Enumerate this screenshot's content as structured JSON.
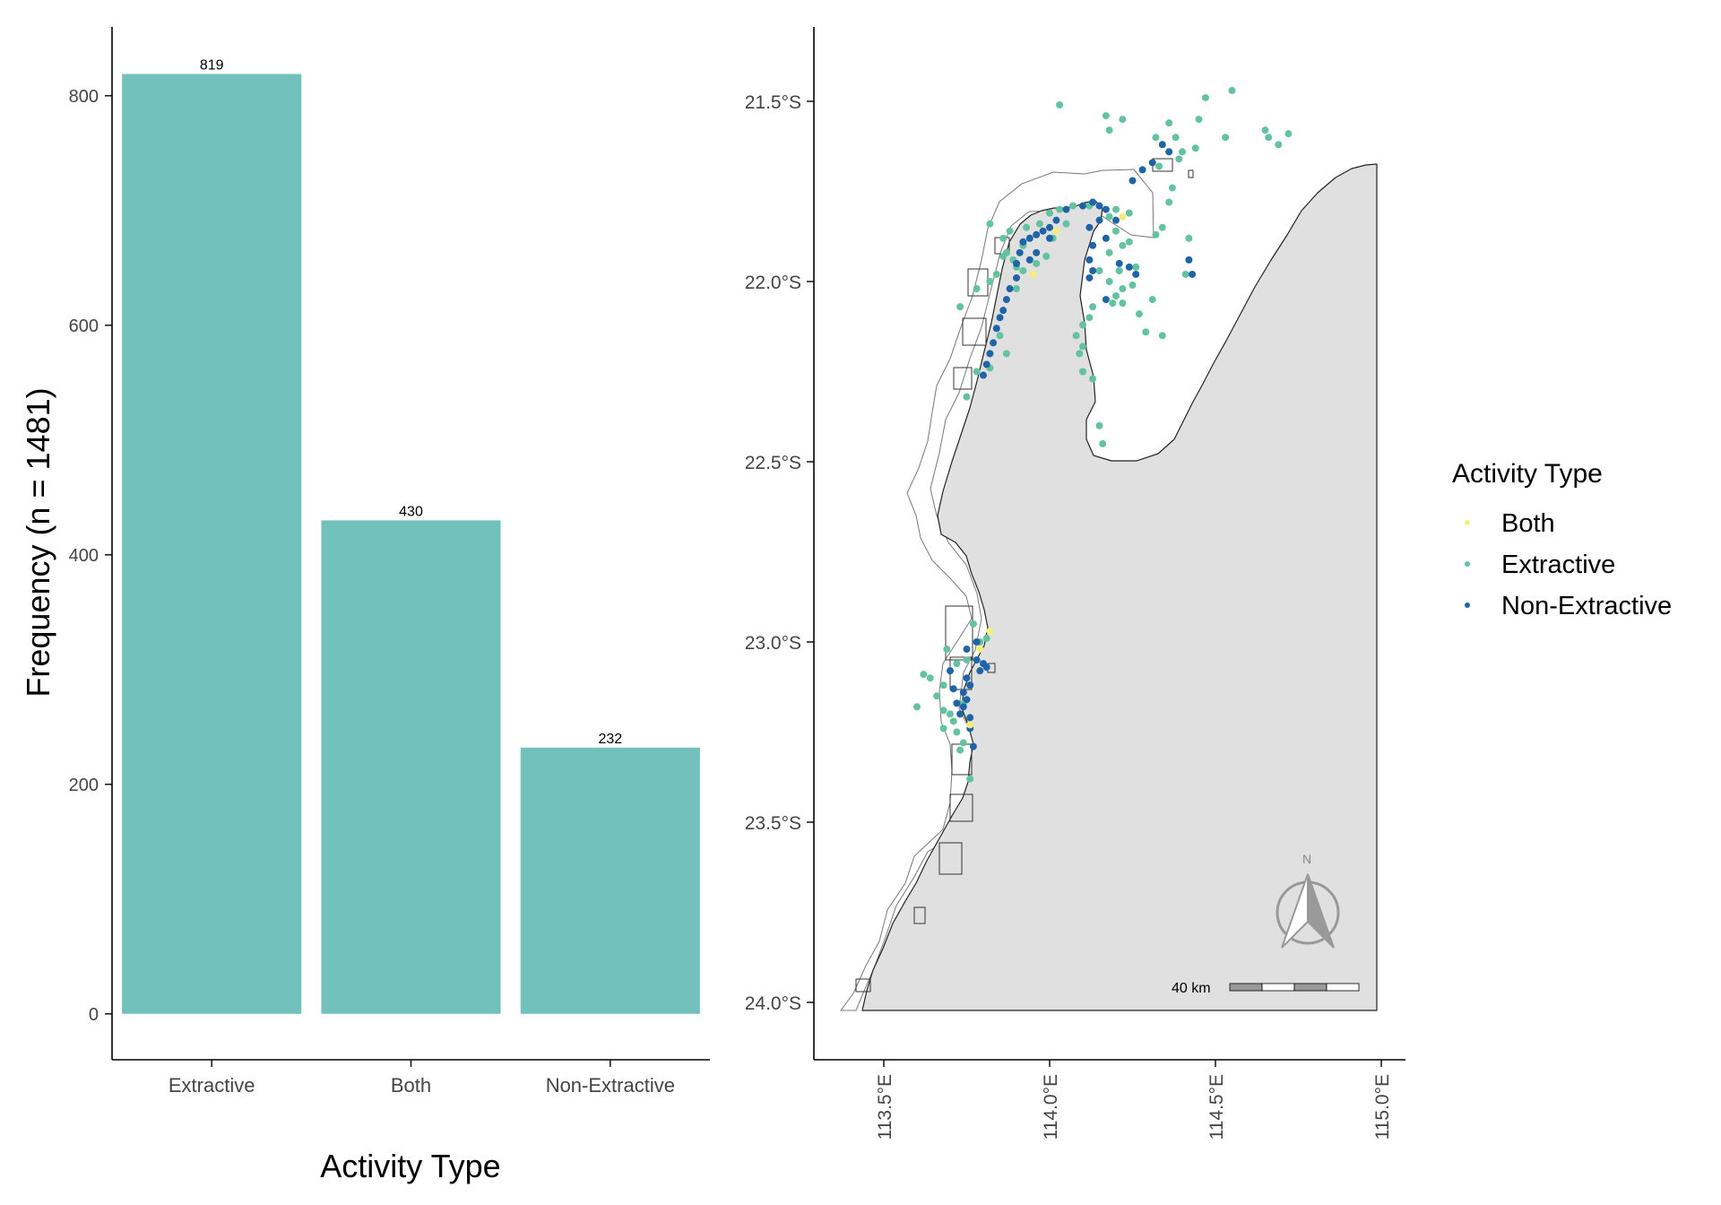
{
  "chart_data": [
    {
      "type": "bar",
      "categories": [
        "Extractive",
        "Both",
        "Non-Extractive"
      ],
      "values": [
        819,
        430,
        232
      ],
      "data_labels": [
        "819",
        "430",
        "232"
      ],
      "xlabel": "Activity Type",
      "ylabel": "Frequency (n = 1481)",
      "ylim": [
        -40,
        860
      ],
      "yticks": [
        0,
        200,
        400,
        600,
        800
      ],
      "ytick_labels": [
        "0",
        "200",
        "400",
        "600",
        "800"
      ],
      "bar_color": "#72c1bd",
      "grid": false
    },
    {
      "type": "scatter",
      "map": true,
      "x_range": [
        113.2,
        115.08
      ],
      "y_range": [
        -24.15,
        -21.3
      ],
      "xticks": [
        113.5,
        114.0,
        114.5,
        115.0
      ],
      "xtick_labels": [
        "113.5°E",
        "114.0°E",
        "114.5°E",
        "115.0°E"
      ],
      "yticks": [
        -21.5,
        -22.0,
        -22.5,
        -23.0,
        -23.5,
        -24.0
      ],
      "ytick_labels": [
        "21.5°S",
        "22.0°S",
        "22.5°S",
        "23.0°S",
        "23.5°S",
        "24.0°S"
      ],
      "legend_title": "Activity Type",
      "legend_position": "right",
      "grid": false,
      "land_color": "#e0e0e0",
      "coast_color": "#222222",
      "north_arrow_label": "N",
      "scale_bar_label": "40 km",
      "series": [
        {
          "name": "Both",
          "color": "#f2ee7a",
          "points": [
            [
              113.82,
              -22.97
            ],
            [
              113.79,
              -23.02
            ],
            [
              113.95,
              -21.98
            ],
            [
              114.02,
              -21.86
            ],
            [
              113.76,
              -23.23
            ],
            [
              114.22,
              -21.82
            ]
          ]
        },
        {
          "name": "Extractive",
          "color": "#63c29f",
          "points": [
            [
              114.03,
              -21.51
            ],
            [
              114.17,
              -21.54
            ],
            [
              114.18,
              -21.58
            ],
            [
              114.22,
              -21.55
            ],
            [
              114.32,
              -21.6
            ],
            [
              114.38,
              -21.6
            ],
            [
              114.44,
              -21.63
            ],
            [
              114.53,
              -21.6
            ],
            [
              114.47,
              -21.49
            ],
            [
              114.55,
              -21.47
            ],
            [
              114.66,
              -21.6
            ],
            [
              114.69,
              -21.62
            ],
            [
              114.72,
              -21.59
            ],
            [
              114.65,
              -21.58
            ],
            [
              114.36,
              -21.56
            ],
            [
              114.4,
              -21.64
            ],
            [
              114.33,
              -21.68
            ],
            [
              114.39,
              -21.66
            ],
            [
              114.34,
              -21.85
            ],
            [
              114.42,
              -21.88
            ],
            [
              114.36,
              -21.78
            ],
            [
              114.32,
              -21.87
            ],
            [
              113.87,
              -21.92
            ],
            [
              113.89,
              -21.94
            ],
            [
              113.92,
              -21.9
            ],
            [
              113.94,
              -21.88
            ],
            [
              113.9,
              -21.96
            ],
            [
              113.88,
              -21.86
            ],
            [
              113.93,
              -21.85
            ],
            [
              113.97,
              -21.84
            ],
            [
              114.0,
              -21.81
            ],
            [
              114.03,
              -21.8
            ],
            [
              114.07,
              -21.79
            ],
            [
              114.12,
              -21.79
            ],
            [
              114.18,
              -21.82
            ],
            [
              114.2,
              -21.8
            ],
            [
              114.24,
              -21.81
            ],
            [
              114.2,
              -21.86
            ],
            [
              114.22,
              -21.9
            ],
            [
              114.18,
              -21.92
            ],
            [
              114.15,
              -21.97
            ],
            [
              114.18,
              -22.0
            ],
            [
              114.2,
              -22.04
            ],
            [
              114.22,
              -22.02
            ],
            [
              114.25,
              -22.01
            ],
            [
              114.26,
              -21.96
            ],
            [
              114.24,
              -21.89
            ],
            [
              114.21,
              -21.97
            ],
            [
              114.19,
              -22.06
            ],
            [
              114.22,
              -22.06
            ],
            [
              114.13,
              -22.07
            ],
            [
              114.1,
              -22.12
            ],
            [
              114.08,
              -22.15
            ],
            [
              114.12,
              -22.1
            ],
            [
              114.1,
              -22.18
            ],
            [
              114.09,
              -22.2
            ],
            [
              114.1,
              -22.25
            ],
            [
              114.13,
              -22.27
            ],
            [
              114.15,
              -22.4
            ],
            [
              114.16,
              -22.45
            ],
            [
              113.82,
              -22.0
            ],
            [
              113.78,
              -22.02
            ],
            [
              113.73,
              -22.07
            ],
            [
              113.84,
              -21.98
            ],
            [
              113.86,
              -21.88
            ],
            [
              113.82,
              -21.84
            ],
            [
              113.86,
              -21.93
            ],
            [
              113.9,
              -22.02
            ],
            [
              113.85,
              -22.15
            ],
            [
              113.87,
              -22.2
            ],
            [
              113.92,
              -21.97
            ],
            [
              113.96,
              -21.95
            ],
            [
              113.99,
              -21.93
            ],
            [
              114.01,
              -21.88
            ],
            [
              114.05,
              -21.84
            ],
            [
              113.78,
              -22.25
            ],
            [
              113.82,
              -22.24
            ],
            [
              113.75,
              -22.32
            ],
            [
              114.29,
              -22.14
            ],
            [
              114.34,
              -22.15
            ],
            [
              114.31,
              -22.05
            ],
            [
              114.27,
              -22.09
            ],
            [
              114.41,
              -21.98
            ],
            [
              113.62,
              -23.09
            ],
            [
              113.64,
              -23.1
            ],
            [
              113.6,
              -23.18
            ],
            [
              113.66,
              -23.15
            ],
            [
              113.68,
              -23.12
            ],
            [
              113.7,
              -23.08
            ],
            [
              113.7,
              -23.2
            ],
            [
              113.72,
              -23.25
            ],
            [
              113.74,
              -23.28
            ],
            [
              113.71,
              -23.22
            ],
            [
              113.68,
              -23.24
            ],
            [
              113.69,
              -23.02
            ],
            [
              113.72,
              -23.06
            ],
            [
              113.76,
              -23.12
            ],
            [
              113.74,
              -23.17
            ],
            [
              113.73,
              -23.3
            ],
            [
              113.76,
              -23.38
            ],
            [
              113.77,
              -22.95
            ],
            [
              113.79,
              -23.0
            ],
            [
              113.81,
              -22.99
            ],
            [
              113.75,
              -23.05
            ],
            [
              113.68,
              -23.19
            ],
            [
              114.45,
              -21.55
            ],
            [
              114.37,
              -21.74
            ]
          ]
        },
        {
          "name": "Non-Extractive",
          "color": "#2064a8",
          "points": [
            [
              114.34,
              -21.62
            ],
            [
              114.36,
              -21.64
            ],
            [
              114.31,
              -21.67
            ],
            [
              114.28,
              -21.69
            ],
            [
              114.25,
              -21.72
            ],
            [
              114.05,
              -21.8
            ],
            [
              114.1,
              -21.79
            ],
            [
              114.13,
              -21.78
            ],
            [
              114.15,
              -21.79
            ],
            [
              114.17,
              -21.8
            ],
            [
              114.02,
              -21.83
            ],
            [
              114.0,
              -21.85
            ],
            [
              113.98,
              -21.86
            ],
            [
              113.96,
              -21.87
            ],
            [
              113.94,
              -21.88
            ],
            [
              113.92,
              -21.89
            ],
            [
              113.91,
              -21.92
            ],
            [
              113.9,
              -21.95
            ],
            [
              113.9,
              -21.99
            ],
            [
              113.88,
              -22.02
            ],
            [
              113.87,
              -22.05
            ],
            [
              113.86,
              -22.08
            ],
            [
              113.85,
              -22.1
            ],
            [
              113.84,
              -22.13
            ],
            [
              113.83,
              -22.17
            ],
            [
              113.82,
              -22.2
            ],
            [
              113.81,
              -22.23
            ],
            [
              113.8,
              -22.26
            ],
            [
              114.12,
              -21.85
            ],
            [
              114.13,
              -21.9
            ],
            [
              114.12,
              -21.94
            ],
            [
              114.13,
              -21.97
            ],
            [
              114.17,
              -21.88
            ],
            [
              114.15,
              -21.83
            ],
            [
              114.2,
              -21.83
            ],
            [
              114.21,
              -21.95
            ],
            [
              114.24,
              -21.96
            ],
            [
              114.26,
              -21.98
            ],
            [
              114.42,
              -21.94
            ],
            [
              114.43,
              -21.98
            ],
            [
              114.17,
              -22.05
            ],
            [
              114.12,
              -21.99
            ],
            [
              114.0,
              -21.88
            ],
            [
              113.96,
              -21.92
            ],
            [
              113.94,
              -21.94
            ],
            [
              113.75,
              -23.1
            ],
            [
              113.76,
              -23.12
            ],
            [
              113.74,
              -23.14
            ],
            [
              113.75,
              -23.16
            ],
            [
              113.74,
              -23.18
            ],
            [
              113.73,
              -23.2
            ],
            [
              113.76,
              -23.24
            ],
            [
              113.77,
              -23.29
            ],
            [
              113.78,
              -23.05
            ],
            [
              113.8,
              -23.06
            ],
            [
              113.72,
              -23.17
            ],
            [
              113.71,
              -23.13
            ],
            [
              113.7,
              -23.08
            ],
            [
              113.76,
              -23.21
            ],
            [
              113.79,
              -23.08
            ],
            [
              113.81,
              -23.07
            ],
            [
              113.78,
              -23.0
            ],
            [
              113.75,
              -23.02
            ]
          ]
        }
      ]
    }
  ]
}
